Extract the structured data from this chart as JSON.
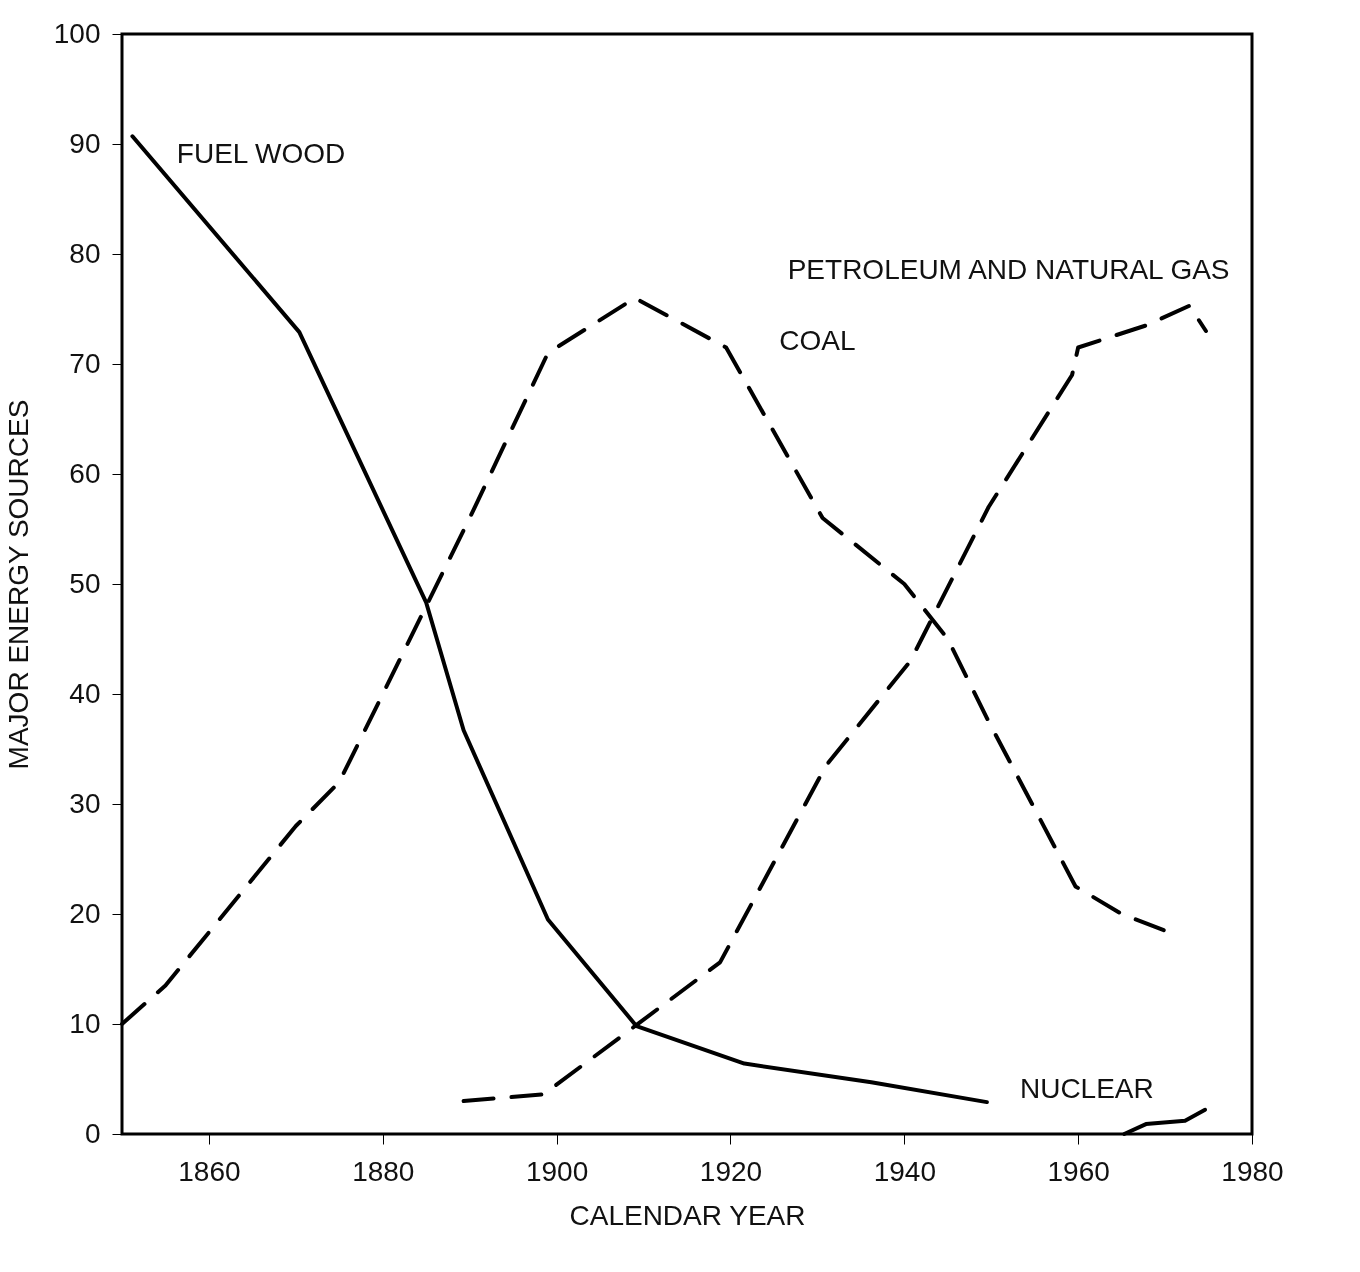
{
  "chart_data": {
    "type": "line",
    "xlabel": "CALENDAR YEAR",
    "ylabel": "MAJOR ENERGY SOURCES",
    "xlim": [
      1850,
      1980
    ],
    "ylim": [
      0,
      100
    ],
    "xticks": [
      1860,
      1880,
      1900,
      1920,
      1940,
      1960,
      1980
    ],
    "yticks": [
      0,
      10,
      20,
      30,
      40,
      50,
      60,
      70,
      80,
      90,
      100
    ],
    "series": [
      {
        "name": "FUEL WOOD",
        "color": "#000000",
        "line_style": "solid",
        "x": [
          1851.2,
          1870.4,
          1885,
          1889.3,
          1899,
          1909.2,
          1921.6,
          1936.2,
          1949.5
        ],
        "values": [
          90.7,
          72.9,
          48.3,
          36.7,
          19.5,
          9.8,
          6.4,
          4.7,
          2.9
        ]
      },
      {
        "name": "COAL",
        "color": "#000000",
        "line_style": "dashed",
        "x": [
          1850,
          1855,
          1870,
          1875,
          1885,
          1890,
          1899,
          1909,
          1919.5,
          1930.6,
          1940,
          1945,
          1949.7,
          1959.7,
          1965,
          1970.6
        ],
        "values": [
          10,
          13.5,
          28,
          32,
          48,
          56,
          71,
          76,
          71.5,
          56,
          50,
          45,
          37.5,
          22.5,
          20,
          18.3
        ]
      },
      {
        "name": "PETROLEUM AND NATURAL GAS",
        "color": "#000000",
        "line_style": "dashed",
        "x": [
          1889.3,
          1898.5,
          1909,
          1918.8,
          1931,
          1940.7,
          1949.7,
          1959.3,
          1960,
          1967.8,
          1972.8,
          1974.7
        ],
        "values": [
          3,
          3.6,
          9.8,
          15.6,
          33.5,
          43,
          57,
          69,
          71.5,
          73.5,
          75.3,
          73
        ]
      },
      {
        "name": "NUCLEAR",
        "color": "#000000",
        "line_style": "solid",
        "x": [
          1965.3,
          1967.8,
          1972.3,
          1974.6
        ],
        "values": [
          0,
          0.9,
          1.2,
          2.2
        ]
      }
    ]
  }
}
